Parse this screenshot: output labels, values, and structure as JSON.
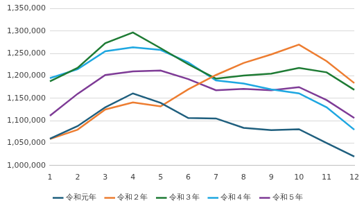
{
  "chart_data": {
    "type": "line",
    "categories": [
      "1",
      "2",
      "3",
      "4",
      "5",
      "6",
      "7",
      "8",
      "9",
      "10",
      "11",
      "12"
    ],
    "series": [
      {
        "name": "令和元年",
        "color": "#1f5f7e",
        "values": [
          1060000,
          1088000,
          1130000,
          1161000,
          1140000,
          1106000,
          1105000,
          1084000,
          1079000,
          1081000,
          1050000,
          1020000
        ]
      },
      {
        "name": "令和２年",
        "color": "#ed7d31",
        "values": [
          1059000,
          1080000,
          1125000,
          1141000,
          1132000,
          1170000,
          1202000,
          1229000,
          1248000,
          1270000,
          1233000,
          1184000
        ]
      },
      {
        "name": "令和３年",
        "color": "#1e7b34",
        "values": [
          1188000,
          1218000,
          1273000,
          1297000,
          1262000,
          1226000,
          1194000,
          1201000,
          1205000,
          1218000,
          1208000,
          1169000
        ]
      },
      {
        "name": "令和４年",
        "color": "#1ea7e1",
        "values": [
          1195000,
          1215000,
          1255000,
          1264000,
          1258000,
          1230000,
          1190000,
          1183000,
          1170000,
          1161000,
          1130000,
          1080000
        ]
      },
      {
        "name": "令和５年",
        "color": "#7e3b96",
        "values": [
          1111000,
          1160000,
          1202000,
          1210000,
          1212000,
          1193000,
          1168000,
          1171000,
          1168000,
          1175000,
          1146000,
          1106000
        ]
      }
    ],
    "ylim": [
      1000000,
      1350000
    ],
    "yticks": [
      {
        "value": 1000000,
        "label": "1,000,000"
      },
      {
        "value": 1050000,
        "label": "1,050,000"
      },
      {
        "value": 1100000,
        "label": "1,100,000"
      },
      {
        "value": 1150000,
        "label": "1,150,000"
      },
      {
        "value": 1200000,
        "label": "1,200,000"
      },
      {
        "value": 1250000,
        "label": "1,250,000"
      },
      {
        "value": 1300000,
        "label": "1,300,000"
      },
      {
        "value": 1350000,
        "label": "1,350,000"
      }
    ],
    "grid": true,
    "legend": "bottom"
  }
}
